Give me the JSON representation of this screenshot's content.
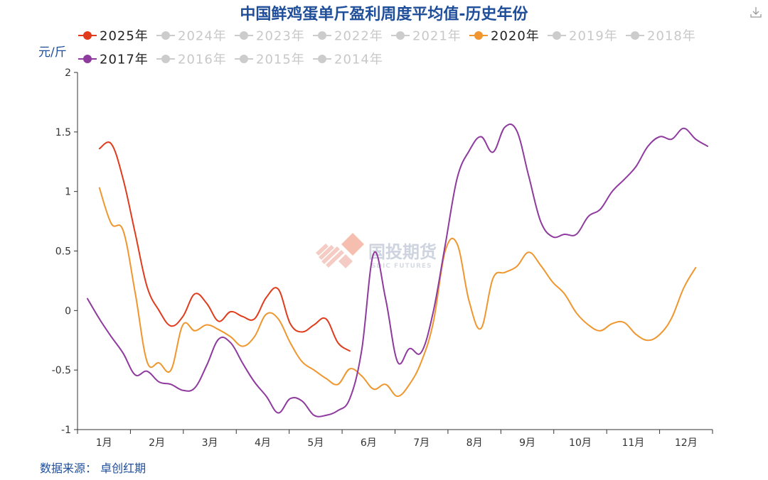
{
  "chart_data": {
    "type": "line",
    "title": "中国鲜鸡蛋单斤盈利周度平均值-历史年份",
    "ylabel": "元/斤",
    "xlabel": "",
    "ylim": [
      -1,
      2
    ],
    "yticks": [
      -1,
      -0.5,
      0,
      0.5,
      1,
      1.5,
      2
    ],
    "ytick_labels": [
      "-1",
      "-0.5",
      "0",
      "0.5",
      "1",
      "1.5",
      "2"
    ],
    "xlim": [
      1,
      53
    ],
    "month_labels": [
      "1月",
      "2月",
      "3月",
      "4月",
      "5月",
      "6月",
      "7月",
      "8月",
      "9月",
      "10月",
      "11月",
      "12月"
    ],
    "legend_position": "top",
    "grid": false,
    "series": [
      {
        "name": "2025年",
        "color": "#e03c1c",
        "active": true,
        "x": [
          2,
          3,
          4,
          5,
          6,
          7,
          8,
          9,
          10,
          11,
          12,
          13,
          14,
          15,
          16,
          17,
          18,
          19,
          20,
          21,
          22,
          23
        ],
        "values": [
          1.36,
          1.4,
          1.1,
          0.65,
          0.2,
          0.0,
          -0.13,
          -0.05,
          0.14,
          0.06,
          -0.09,
          -0.01,
          -0.05,
          -0.07,
          0.11,
          0.18,
          -0.11,
          -0.18,
          -0.12,
          -0.07,
          -0.27,
          -0.34
        ]
      },
      {
        "name": "2024年",
        "color": "#cccccc",
        "active": false,
        "x": [],
        "values": []
      },
      {
        "name": "2023年",
        "color": "#cccccc",
        "active": false,
        "x": [],
        "values": []
      },
      {
        "name": "2022年",
        "color": "#cccccc",
        "active": false,
        "x": [],
        "values": []
      },
      {
        "name": "2021年",
        "color": "#cccccc",
        "active": false,
        "x": [],
        "values": []
      },
      {
        "name": "2020年",
        "color": "#f0962e",
        "active": true,
        "x": [
          2,
          3,
          4,
          5,
          6,
          7,
          8,
          9,
          10,
          11,
          12,
          13,
          14,
          15,
          16,
          17,
          18,
          19,
          20,
          21,
          22,
          23,
          24,
          25,
          26,
          27,
          28,
          29,
          30,
          31,
          32,
          33,
          34,
          35,
          36,
          37,
          38,
          39,
          40,
          41,
          42,
          43,
          44,
          45,
          46,
          47,
          48,
          49,
          50,
          51,
          52
        ],
        "values": [
          1.03,
          0.73,
          0.67,
          0.15,
          -0.43,
          -0.44,
          -0.5,
          -0.12,
          -0.17,
          -0.12,
          -0.16,
          -0.22,
          -0.3,
          -0.22,
          -0.03,
          -0.07,
          -0.27,
          -0.43,
          -0.5,
          -0.57,
          -0.62,
          -0.49,
          -0.55,
          -0.66,
          -0.62,
          -0.72,
          -0.62,
          -0.43,
          -0.1,
          0.5,
          0.56,
          0.08,
          -0.15,
          0.27,
          0.32,
          0.37,
          0.49,
          0.38,
          0.24,
          0.14,
          -0.02,
          -0.12,
          -0.17,
          -0.11,
          -0.1,
          -0.2,
          -0.25,
          -0.2,
          -0.06,
          0.19,
          0.36
        ]
      },
      {
        "name": "2019年",
        "color": "#cccccc",
        "active": false,
        "x": [],
        "values": []
      },
      {
        "name": "2018年",
        "color": "#cccccc",
        "active": false,
        "x": [],
        "values": []
      },
      {
        "name": "2017年",
        "color": "#8e3a9e",
        "active": true,
        "x": [
          1,
          2,
          3,
          4,
          5,
          6,
          7,
          8,
          9,
          10,
          11,
          12,
          13,
          14,
          15,
          16,
          17,
          18,
          19,
          20,
          21,
          22,
          23,
          24,
          25,
          26,
          27,
          28,
          29,
          30,
          31,
          32,
          33,
          34,
          35,
          36,
          37,
          38,
          39,
          40,
          41,
          42,
          43,
          44,
          45,
          46,
          47,
          48,
          49,
          50,
          51,
          52,
          53
        ],
        "values": [
          0.1,
          -0.07,
          -0.22,
          -0.36,
          -0.54,
          -0.51,
          -0.6,
          -0.62,
          -0.67,
          -0.65,
          -0.46,
          -0.24,
          -0.27,
          -0.44,
          -0.6,
          -0.72,
          -0.86,
          -0.74,
          -0.76,
          -0.88,
          -0.88,
          -0.84,
          -0.74,
          -0.33,
          0.48,
          0.1,
          -0.43,
          -0.32,
          -0.35,
          -0.01,
          0.55,
          1.11,
          1.34,
          1.46,
          1.33,
          1.54,
          1.51,
          1.13,
          0.75,
          0.62,
          0.64,
          0.64,
          0.79,
          0.85,
          1.0,
          1.1,
          1.21,
          1.38,
          1.46,
          1.44,
          1.53,
          1.44,
          1.38
        ]
      },
      {
        "name": "2016年",
        "color": "#cccccc",
        "active": false,
        "x": [],
        "values": []
      },
      {
        "name": "2015年",
        "color": "#cccccc",
        "active": false,
        "x": [],
        "values": []
      },
      {
        "name": "2014年",
        "color": "#cccccc",
        "active": false,
        "x": [],
        "values": []
      }
    ]
  },
  "source": "数据来源：  卓创红期",
  "watermark": {
    "brand": "国投期货",
    "brand_sub": "SDIC FUTURES"
  },
  "toolbox": {
    "download_icon": "download-icon"
  },
  "colors": {
    "title": "#1f4e9a",
    "axis": "#333333",
    "inactive": "#cccccc"
  }
}
